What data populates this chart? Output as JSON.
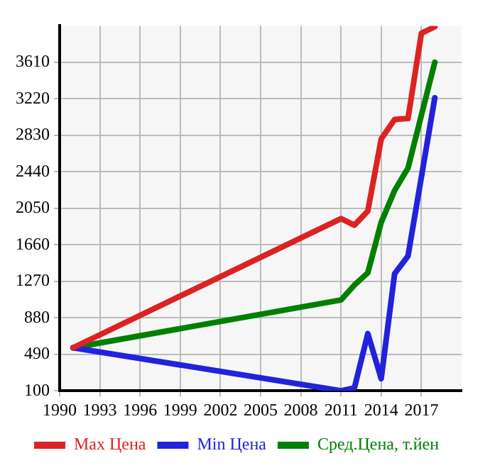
{
  "chart_data": {
    "type": "line",
    "x": [
      1991,
      2011,
      2012,
      2013,
      2014,
      2015,
      2016,
      2017,
      2018
    ],
    "series": [
      {
        "name": "Max Цена",
        "color": "#dd2222",
        "values": [
          560,
          1940,
          1870,
          2020,
          2790,
          3000,
          3010,
          3920,
          3990
        ]
      },
      {
        "name": "Min Цена",
        "color": "#2222dd",
        "values": [
          560,
          100,
          130,
          710,
          230,
          1350,
          1540,
          null,
          3230
        ]
      },
      {
        "name": "Сред.Цена, т.йен",
        "color": "#008000",
        "values": [
          560,
          1070,
          1230,
          1360,
          1900,
          2240,
          2480,
          null,
          3610
        ]
      }
    ],
    "xlim": [
      1990,
      2020
    ],
    "xticks": [
      1990,
      1993,
      1996,
      1999,
      2002,
      2005,
      2008,
      2011,
      2014,
      2017
    ],
    "ylim": [
      100,
      4000
    ],
    "yticks": [
      100,
      490,
      880,
      1270,
      1660,
      2050,
      2440,
      2830,
      3220,
      3610
    ],
    "grid": true,
    "legend": "bottom",
    "marker": "none",
    "line_style": "solid"
  }
}
